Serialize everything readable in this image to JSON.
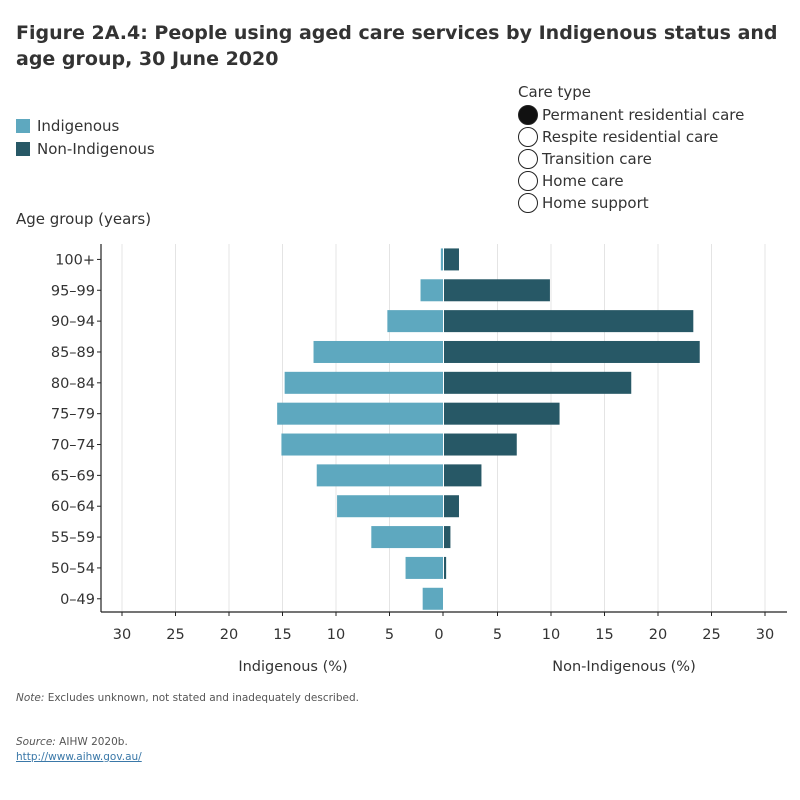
{
  "title": "Figure 2A.4: People using aged care services by Indigenous status and age group, 30 June 2020",
  "legend": {
    "items": [
      {
        "label": "Indigenous",
        "color": "#5ea8bf"
      },
      {
        "label": "Non-Indigenous",
        "color": "#275866"
      }
    ]
  },
  "care_type": {
    "heading": "Care type",
    "options": [
      {
        "label": "Permanent residential care",
        "selected": true
      },
      {
        "label": "Respite residential care",
        "selected": false
      },
      {
        "label": "Transition care",
        "selected": false
      },
      {
        "label": "Home care",
        "selected": false
      },
      {
        "label": "Home support",
        "selected": false
      }
    ]
  },
  "chart_data": {
    "type": "bar",
    "orientation": "horizontal",
    "y_axis_title": "Age group (years)",
    "categories": [
      "100+",
      "95–99",
      "90–94",
      "85–89",
      "80–84",
      "75–79",
      "70–74",
      "65–69",
      "60–64",
      "55–59",
      "50–54",
      "0–49"
    ],
    "series": [
      {
        "name": "Indigenous",
        "color": "#5ea8bf",
        "side": "left",
        "values": [
          0.2,
          2.1,
          5.2,
          12.1,
          14.8,
          15.5,
          15.1,
          11.8,
          9.9,
          6.7,
          3.5,
          1.9
        ]
      },
      {
        "name": "Non-Indigenous",
        "color": "#275866",
        "side": "right",
        "values": [
          1.4,
          9.9,
          23.3,
          23.9,
          17.5,
          10.8,
          6.8,
          3.5,
          1.4,
          0.6,
          0.2,
          0.0
        ]
      }
    ],
    "left_axis": {
      "label": "Indigenous (%)",
      "ticks": [
        "30",
        "25",
        "20",
        "15",
        "10",
        "5",
        "0"
      ]
    },
    "right_axis": {
      "label": "Non-Indigenous (%)",
      "ticks": [
        "5",
        "10",
        "15",
        "20",
        "25",
        "30"
      ]
    },
    "xlim": [
      0,
      30
    ]
  },
  "note": {
    "label": "Note:",
    "text": " Excludes unknown, not stated and inadequately described."
  },
  "source": {
    "label": "Source:",
    "text": " AIHW 2020b.",
    "link": "http://www.aihw.gov.au/"
  }
}
